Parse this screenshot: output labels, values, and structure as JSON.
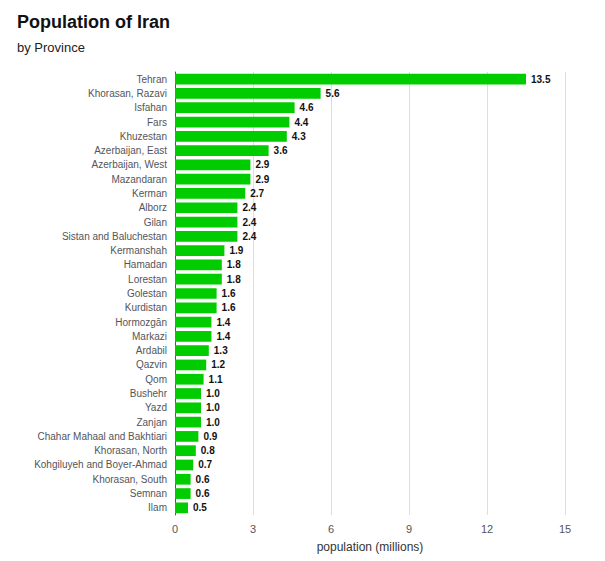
{
  "chart_data": {
    "type": "bar",
    "orientation": "horizontal",
    "title": "Population of Iran",
    "subtitle": "by Province",
    "xlabel": "population (millions)",
    "categories": [
      "Tehran",
      "Khorasan, Razavi",
      "Isfahan",
      "Fars",
      "Khuzestan",
      "Azerbaijan, East",
      "Azerbaijan, West",
      "Mazandaran",
      "Kerman",
      "Alborz",
      "Gilan",
      "Sistan and Baluchestan",
      "Kermanshah",
      "Hamadan",
      "Lorestan",
      "Golestan",
      "Kurdistan",
      "Hormozgān",
      "Markazi",
      "Ardabil",
      "Qazvin",
      "Qom",
      "Bushehr",
      "Yazd",
      "Zanjan",
      "Chahar Mahaal and Bakhtiari",
      "Khorasan, North",
      "Kohgiluyeh and Boyer-Ahmad",
      "Khorasan, South",
      "Semnan",
      "Ilam"
    ],
    "values": [
      13.5,
      5.6,
      4.6,
      4.4,
      4.3,
      3.6,
      2.9,
      2.9,
      2.7,
      2.4,
      2.4,
      2.4,
      1.9,
      1.8,
      1.8,
      1.6,
      1.6,
      1.4,
      1.4,
      1.3,
      1.2,
      1.1,
      1.0,
      1.0,
      1.0,
      0.9,
      0.8,
      0.7,
      0.6,
      0.6,
      0.5
    ],
    "value_labels": [
      "13.5",
      "5.6",
      "4.6",
      "4.4",
      "4.3",
      "3.6",
      "2.9",
      "2.9",
      "2.7",
      "2.4",
      "2.4",
      "2.4",
      "1.9",
      "1.8",
      "1.8",
      "1.6",
      "1.6",
      "1.4",
      "1.4",
      "1.3",
      "1.2",
      "1.1",
      "1.0",
      "1.0",
      "1.0",
      "0.9",
      "0.8",
      "0.7",
      "0.6",
      "0.6",
      "0.5"
    ],
    "color": "#00cc00",
    "xlim": [
      0,
      15
    ],
    "xticks": [
      0,
      3,
      6,
      9,
      12,
      15
    ],
    "grid": true,
    "data_labels": true
  }
}
